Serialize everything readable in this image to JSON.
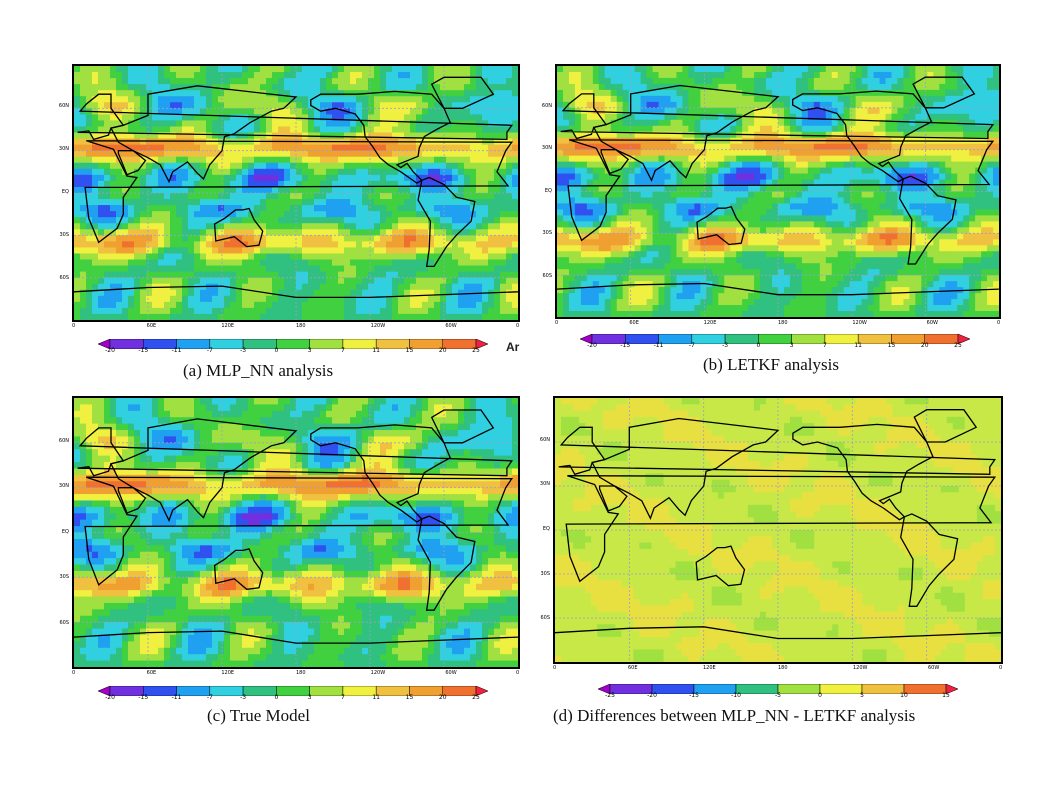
{
  "palette": {
    "full": [
      "#a000c8",
      "#7030e0",
      "#3050f0",
      "#20a0f0",
      "#30d0e0",
      "#30c080",
      "#40d040",
      "#a0e040",
      "#f0f040",
      "#f0c040",
      "#f0a030",
      "#f07030",
      "#f02040",
      "#f020a0"
    ],
    "diff": [
      "#a000c8",
      "#7030e0",
      "#3050f0",
      "#20a0f0",
      "#30d0c0",
      "#30c080",
      "#40d040",
      "#a0e040",
      "#f0f040",
      "#f0c040",
      "#f0a030",
      "#f07030",
      "#f02040",
      "#f020a0"
    ],
    "land_outline": "#000000",
    "grid": "#9aa0c8"
  },
  "panels": [
    {
      "id": "a",
      "caption": "(a) MLP_NN analysis",
      "type": "full",
      "lat_labels": [
        "60N",
        "30N",
        "EQ",
        "30S",
        "60S"
      ],
      "lon_labels": [
        "0",
        "60E",
        "120E",
        "180",
        "120W",
        "60W",
        "0"
      ],
      "colorbar_labels": [
        "-20",
        "-15",
        "-11",
        "-7",
        "-3",
        "0",
        "3",
        "7",
        "11",
        "15",
        "20",
        "25"
      ],
      "edge_text": "Ar"
    },
    {
      "id": "b",
      "caption": "(b) LETKF analysis",
      "type": "full",
      "lat_labels": [
        "60N",
        "30N",
        "EQ",
        "30S",
        "60S"
      ],
      "lon_labels": [
        "0",
        "60E",
        "120E",
        "180",
        "120W",
        "60W",
        "0"
      ],
      "colorbar_labels": [
        "-20",
        "-15",
        "-11",
        "-7",
        "-3",
        "0",
        "3",
        "7",
        "11",
        "15",
        "20",
        "25"
      ]
    },
    {
      "id": "c",
      "caption": "(c) True Model",
      "type": "full",
      "lat_labels": [
        "60N",
        "30N",
        "EQ",
        "30S",
        "60S"
      ],
      "lon_labels": [
        "0",
        "60E",
        "120E",
        "180",
        "120W",
        "60W",
        "0"
      ],
      "colorbar_labels": [
        "-20",
        "-15",
        "-11",
        "-7",
        "-3",
        "0",
        "3",
        "7",
        "11",
        "15",
        "20",
        "25"
      ]
    },
    {
      "id": "d",
      "caption": "(d)  Differences between MLP_NN  - LETKF analysis",
      "type": "diff",
      "lat_labels": [
        "60N",
        "30N",
        "EQ",
        "30S",
        "60S"
      ],
      "lon_labels": [
        "0",
        "60E",
        "120E",
        "180",
        "120W",
        "60W",
        "0"
      ],
      "colorbar_labels": [
        "-25",
        "-20",
        "-15",
        "-10",
        "-5",
        "0",
        "5",
        "10",
        "15"
      ]
    }
  ]
}
